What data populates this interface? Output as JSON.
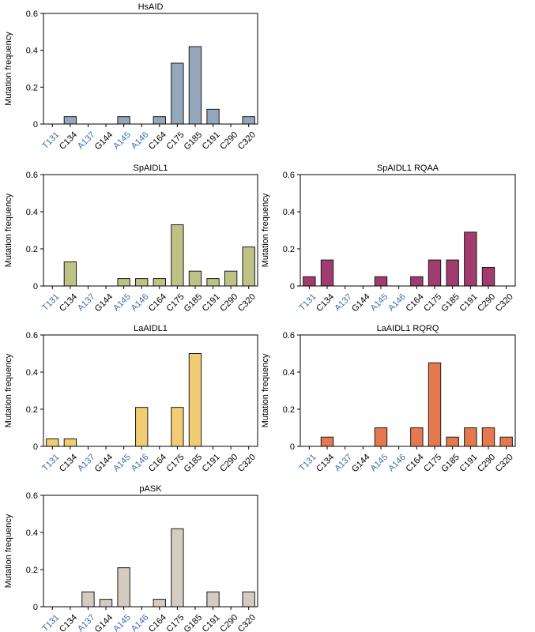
{
  "colors": {
    "tick_blue": "#3a6bb5",
    "tick_black": "#000000",
    "bar_stroke": "#1a1a1a"
  },
  "chart_data": [
    {
      "type": "bar",
      "title": "HsAID",
      "ylabel": "Mutation frequency",
      "categories": [
        "T131",
        "C134",
        "A137",
        "G144",
        "A145",
        "A146",
        "C164",
        "C175",
        "G185",
        "C191",
        "C290",
        "C320"
      ],
      "category_colors": [
        "blue",
        "black",
        "blue",
        "black",
        "blue",
        "blue",
        "black",
        "black",
        "black",
        "black",
        "black",
        "black"
      ],
      "values": [
        0,
        0.04,
        0,
        0,
        0.04,
        0,
        0.04,
        0.33,
        0.42,
        0.08,
        0,
        0.04
      ],
      "ylim": [
        0,
        0.6
      ],
      "yticks": [
        "0",
        "0.2",
        "0.4",
        "0.6"
      ],
      "bar_color": "#94a7bb"
    },
    {
      "type": "bar",
      "title": "SpAIDL1",
      "ylabel": "Mutation frequency",
      "categories": [
        "T131",
        "C134",
        "A137",
        "G144",
        "A145",
        "A146",
        "C164",
        "C175",
        "G185",
        "C191",
        "C290",
        "C320"
      ],
      "category_colors": [
        "blue",
        "black",
        "blue",
        "black",
        "blue",
        "blue",
        "black",
        "black",
        "black",
        "black",
        "black",
        "black"
      ],
      "values": [
        0,
        0.13,
        0,
        0,
        0.04,
        0.04,
        0.04,
        0.33,
        0.08,
        0.04,
        0.08,
        0.21
      ],
      "ylim": [
        0,
        0.6
      ],
      "yticks": [
        "0",
        "0.2",
        "0.4",
        "0.6"
      ],
      "bar_color": "#bec385"
    },
    {
      "type": "bar",
      "title": "SpAIDL1 RQAA",
      "ylabel": "Mutation frequency",
      "categories": [
        "T131",
        "C134",
        "A137",
        "G144",
        "A145",
        "A146",
        "C164",
        "C175",
        "G185",
        "C191",
        "C290",
        "C320"
      ],
      "category_colors": [
        "blue",
        "black",
        "blue",
        "black",
        "blue",
        "blue",
        "black",
        "black",
        "black",
        "black",
        "black",
        "black"
      ],
      "values": [
        0.05,
        0.14,
        0,
        0,
        0.05,
        0,
        0.05,
        0.14,
        0.14,
        0.29,
        0.1,
        0
      ],
      "ylim": [
        0,
        0.6
      ],
      "yticks": [
        "0",
        "0.2",
        "0.4",
        "0.6"
      ],
      "bar_color": "#a13c6e"
    },
    {
      "type": "bar",
      "title": "LaAIDL1",
      "ylabel": "Mutation frequency",
      "categories": [
        "T131",
        "C134",
        "A137",
        "G144",
        "A145",
        "A146",
        "C164",
        "C175",
        "G185",
        "C191",
        "C290",
        "C320"
      ],
      "category_colors": [
        "blue",
        "black",
        "blue",
        "black",
        "blue",
        "blue",
        "black",
        "black",
        "black",
        "black",
        "black",
        "black"
      ],
      "values": [
        0.04,
        0.04,
        0,
        0,
        0,
        0.21,
        0,
        0.21,
        0.5,
        0,
        0,
        0
      ],
      "ylim": [
        0,
        0.6
      ],
      "yticks": [
        "0",
        "0.2",
        "0.4",
        "0.6"
      ],
      "bar_color": "#f2cc72"
    },
    {
      "type": "bar",
      "title": "LaAIDL1 RQRQ",
      "ylabel": "Mutation frequency",
      "categories": [
        "T131",
        "C134",
        "A137",
        "G144",
        "A145",
        "A146",
        "C164",
        "C175",
        "G185",
        "C191",
        "C290",
        "C320"
      ],
      "category_colors": [
        "blue",
        "black",
        "blue",
        "black",
        "blue",
        "blue",
        "black",
        "black",
        "black",
        "black",
        "black",
        "black"
      ],
      "values": [
        0,
        0.05,
        0,
        0,
        0.1,
        0,
        0.1,
        0.45,
        0.05,
        0.1,
        0.1,
        0.05
      ],
      "ylim": [
        0,
        0.6
      ],
      "yticks": [
        "0",
        "0.2",
        "0.4",
        "0.6"
      ],
      "bar_color": "#e5784e"
    },
    {
      "type": "bar",
      "title": "pASK",
      "ylabel": "Mutation frequency",
      "categories": [
        "T131",
        "C134",
        "A137",
        "G144",
        "A145",
        "A146",
        "C164",
        "C175",
        "G185",
        "C191",
        "C290",
        "C320"
      ],
      "category_colors": [
        "blue",
        "black",
        "blue",
        "black",
        "blue",
        "blue",
        "black",
        "black",
        "black",
        "black",
        "black",
        "black"
      ],
      "values": [
        0,
        0,
        0.08,
        0.04,
        0.21,
        0,
        0.04,
        0.42,
        0,
        0.08,
        0,
        0.08
      ],
      "ylim": [
        0,
        0.6
      ],
      "yticks": [
        "0",
        "0.2",
        "0.4",
        "0.6"
      ],
      "bar_color": "#d6cbc0"
    }
  ]
}
